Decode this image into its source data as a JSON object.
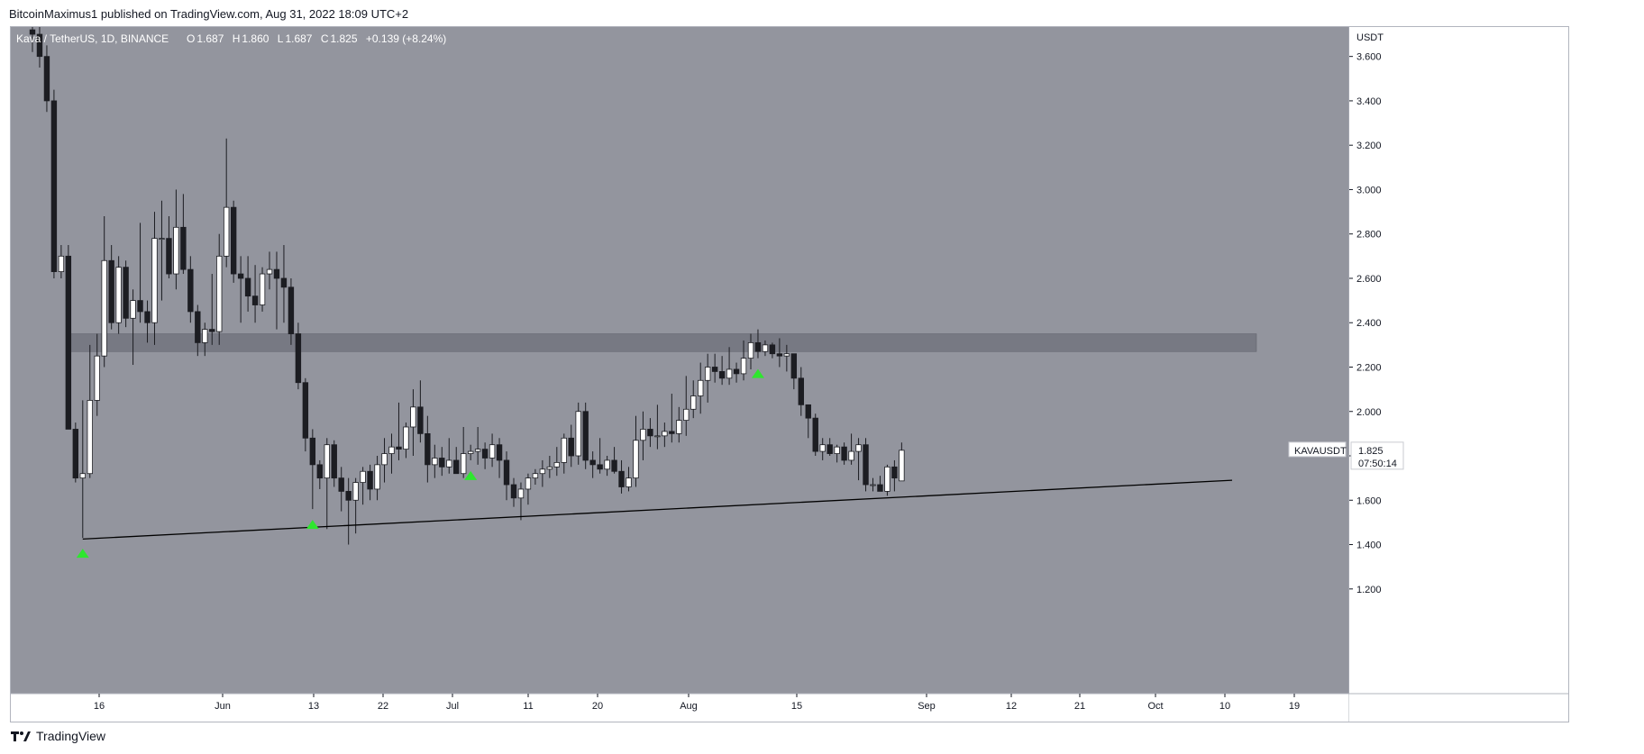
{
  "header": {
    "published_text": "BitcoinMaximus1 published on TradingView.com, Aug 31, 2022 18:09 UTC+2"
  },
  "legend": {
    "symbol": "Kava / TetherUS, 1D, BINANCE",
    "o_label": "O",
    "o_value": "1.687",
    "h_label": "H",
    "h_value": "1.860",
    "l_label": "L",
    "l_value": "1.687",
    "c_label": "C",
    "c_value": "1.825",
    "change": "+0.139 (+8.24%)"
  },
  "price_axis": {
    "unit": "USDT",
    "ticks": [
      "3.600",
      "3.400",
      "3.200",
      "3.000",
      "2.800",
      "2.600",
      "2.400",
      "2.200",
      "2.000",
      "1.800",
      "1.600",
      "1.400",
      "1.200"
    ]
  },
  "time_axis": {
    "ticks": [
      "16",
      "Jun",
      "13",
      "22",
      "Jul",
      "11",
      "20",
      "Aug",
      "15",
      "Sep",
      "12",
      "21",
      "Oct",
      "10",
      "19"
    ]
  },
  "price_tag": {
    "symbol": "KAVAUSDT",
    "price": "1.825",
    "countdown": "07:50:14"
  },
  "footer": {
    "brand": "TradingView"
  },
  "colors": {
    "plot_bg": "#93959e",
    "up_candle": "#ffffff",
    "down_candle": "#1c1d22",
    "zone": "#6e7079",
    "trendline": "#000000",
    "marker": "#2ee62e",
    "axis_bg": "#ffffff"
  },
  "chart_data": {
    "type": "candlestick",
    "title": "Kava / TetherUS, 1D, BINANCE",
    "ylabel": "USDT",
    "ylim": [
      1.2,
      3.8
    ],
    "resistance_zone": [
      2.27,
      2.35
    ],
    "support_line": {
      "start": {
        "candle_index": 7,
        "price": 1.425
      },
      "end": {
        "candle_index": 137,
        "price": 1.69
      }
    },
    "marker_candle_indices": [
      7,
      39,
      61,
      101
    ],
    "ohlc": [
      [
        3.72,
        3.78,
        3.62,
        3.7
      ],
      [
        3.7,
        3.75,
        3.55,
        3.6
      ],
      [
        3.6,
        3.65,
        3.35,
        3.4
      ],
      [
        3.4,
        3.45,
        2.6,
        2.63
      ],
      [
        2.63,
        2.75,
        2.6,
        2.7
      ],
      [
        2.7,
        2.75,
        1.93,
        1.92
      ],
      [
        1.92,
        1.95,
        1.68,
        1.7
      ],
      [
        1.7,
        2.05,
        1.43,
        1.72
      ],
      [
        1.72,
        2.3,
        1.7,
        2.05
      ],
      [
        2.05,
        2.35,
        1.98,
        2.25
      ],
      [
        2.25,
        2.88,
        2.2,
        2.68
      ],
      [
        2.68,
        2.75,
        2.37,
        2.4
      ],
      [
        2.4,
        2.7,
        2.35,
        2.65
      ],
      [
        2.65,
        2.68,
        2.38,
        2.42
      ],
      [
        2.42,
        2.55,
        2.21,
        2.5
      ],
      [
        2.5,
        2.85,
        2.4,
        2.45
      ],
      [
        2.45,
        2.5,
        2.31,
        2.4
      ],
      [
        2.4,
        2.9,
        2.3,
        2.78
      ],
      [
        2.78,
        2.95,
        2.5,
        2.78
      ],
      [
        2.78,
        2.88,
        2.6,
        2.62
      ],
      [
        2.62,
        3.0,
        2.55,
        2.83
      ],
      [
        2.83,
        2.98,
        2.62,
        2.64
      ],
      [
        2.64,
        2.7,
        2.4,
        2.45
      ],
      [
        2.45,
        2.48,
        2.25,
        2.31
      ],
      [
        2.31,
        2.4,
        2.25,
        2.37
      ],
      [
        2.37,
        2.62,
        2.3,
        2.36
      ],
      [
        2.36,
        2.8,
        2.3,
        2.7
      ],
      [
        2.7,
        3.23,
        2.65,
        2.92
      ],
      [
        2.92,
        2.95,
        2.58,
        2.62
      ],
      [
        2.62,
        2.7,
        2.4,
        2.6
      ],
      [
        2.6,
        2.7,
        2.45,
        2.52
      ],
      [
        2.52,
        2.66,
        2.4,
        2.48
      ],
      [
        2.48,
        2.65,
        2.45,
        2.62
      ],
      [
        2.62,
        2.72,
        2.55,
        2.64
      ],
      [
        2.64,
        2.72,
        2.37,
        2.6
      ],
      [
        2.6,
        2.75,
        2.4,
        2.56
      ],
      [
        2.56,
        2.6,
        2.3,
        2.35
      ],
      [
        2.35,
        2.4,
        2.1,
        2.13
      ],
      [
        2.13,
        2.15,
        1.82,
        1.88
      ],
      [
        1.88,
        1.92,
        1.56,
        1.76
      ],
      [
        1.76,
        1.78,
        1.65,
        1.7
      ],
      [
        1.7,
        1.88,
        1.47,
        1.85
      ],
      [
        1.85,
        1.87,
        1.66,
        1.7
      ],
      [
        1.7,
        1.75,
        1.55,
        1.64
      ],
      [
        1.64,
        1.7,
        1.4,
        1.6
      ],
      [
        1.6,
        1.7,
        1.45,
        1.68
      ],
      [
        1.68,
        1.75,
        1.58,
        1.73
      ],
      [
        1.73,
        1.76,
        1.6,
        1.65
      ],
      [
        1.65,
        1.8,
        1.6,
        1.76
      ],
      [
        1.76,
        1.88,
        1.68,
        1.81
      ],
      [
        1.81,
        1.9,
        1.72,
        1.84
      ],
      [
        1.84,
        2.04,
        1.78,
        1.83
      ],
      [
        1.83,
        1.95,
        1.79,
        1.93
      ],
      [
        1.93,
        2.1,
        1.8,
        2.02
      ],
      [
        2.02,
        2.14,
        1.86,
        1.9
      ],
      [
        1.9,
        1.98,
        1.68,
        1.76
      ],
      [
        1.76,
        1.85,
        1.7,
        1.79
      ],
      [
        1.79,
        1.84,
        1.71,
        1.75
      ],
      [
        1.75,
        1.88,
        1.72,
        1.78
      ],
      [
        1.78,
        1.84,
        1.73,
        1.72
      ],
      [
        1.72,
        1.93,
        1.7,
        1.81
      ],
      [
        1.81,
        1.85,
        1.78,
        1.82
      ],
      [
        1.82,
        1.93,
        1.76,
        1.83
      ],
      [
        1.83,
        1.86,
        1.74,
        1.79
      ],
      [
        1.79,
        1.9,
        1.75,
        1.85
      ],
      [
        1.85,
        1.88,
        1.7,
        1.78
      ],
      [
        1.78,
        1.82,
        1.6,
        1.67
      ],
      [
        1.67,
        1.7,
        1.57,
        1.61
      ],
      [
        1.61,
        1.68,
        1.51,
        1.65
      ],
      [
        1.65,
        1.72,
        1.58,
        1.7
      ],
      [
        1.7,
        1.74,
        1.67,
        1.72
      ],
      [
        1.72,
        1.78,
        1.66,
        1.74
      ],
      [
        1.74,
        1.8,
        1.7,
        1.75
      ],
      [
        1.75,
        1.84,
        1.71,
        1.77
      ],
      [
        1.77,
        1.9,
        1.72,
        1.88
      ],
      [
        1.88,
        1.94,
        1.75,
        1.8
      ],
      [
        1.8,
        2.04,
        1.76,
        2.0
      ],
      [
        2.0,
        2.04,
        1.74,
        1.78
      ],
      [
        1.78,
        1.82,
        1.7,
        1.76
      ],
      [
        1.76,
        1.88,
        1.72,
        1.74
      ],
      [
        1.74,
        1.8,
        1.71,
        1.78
      ],
      [
        1.78,
        1.84,
        1.72,
        1.73
      ],
      [
        1.73,
        1.78,
        1.63,
        1.66
      ],
      [
        1.66,
        1.75,
        1.64,
        1.7
      ],
      [
        1.7,
        1.98,
        1.66,
        1.87
      ],
      [
        1.87,
        2.0,
        1.78,
        1.92
      ],
      [
        1.92,
        1.97,
        1.84,
        1.89
      ],
      [
        1.89,
        2.03,
        1.83,
        1.89
      ],
      [
        1.89,
        1.95,
        1.84,
        1.91
      ],
      [
        1.91,
        2.08,
        1.86,
        1.9
      ],
      [
        1.9,
        2.02,
        1.86,
        1.96
      ],
      [
        1.96,
        2.16,
        1.89,
        2.01
      ],
      [
        2.01,
        2.14,
        1.97,
        2.07
      ],
      [
        2.07,
        2.22,
        1.99,
        2.14
      ],
      [
        2.14,
        2.26,
        2.04,
        2.2
      ],
      [
        2.2,
        2.26,
        2.13,
        2.18
      ],
      [
        2.18,
        2.25,
        2.12,
        2.15
      ],
      [
        2.15,
        2.29,
        2.12,
        2.19
      ],
      [
        2.19,
        2.22,
        2.13,
        2.17
      ],
      [
        2.17,
        2.32,
        2.14,
        2.24
      ],
      [
        2.24,
        2.35,
        2.19,
        2.31
      ],
      [
        2.31,
        2.37,
        2.24,
        2.27
      ],
      [
        2.27,
        2.32,
        2.25,
        2.3
      ],
      [
        2.3,
        2.31,
        2.24,
        2.26
      ],
      [
        2.26,
        2.33,
        2.2,
        2.25
      ],
      [
        2.25,
        2.3,
        2.18,
        2.26
      ],
      [
        2.26,
        2.26,
        2.1,
        2.15
      ],
      [
        2.15,
        2.2,
        1.98,
        2.03
      ],
      [
        2.03,
        2.03,
        1.88,
        1.97
      ],
      [
        1.97,
        1.99,
        1.8,
        1.82
      ],
      [
        1.82,
        1.88,
        1.78,
        1.85
      ],
      [
        1.85,
        1.88,
        1.8,
        1.81
      ],
      [
        1.81,
        1.85,
        1.77,
        1.84
      ],
      [
        1.84,
        1.86,
        1.76,
        1.78
      ],
      [
        1.78,
        1.9,
        1.76,
        1.82
      ],
      [
        1.82,
        1.88,
        1.69,
        1.85
      ],
      [
        1.85,
        1.88,
        1.64,
        1.67
      ],
      [
        1.67,
        1.7,
        1.64,
        1.67
      ],
      [
        1.67,
        1.71,
        1.65,
        1.64
      ],
      [
        1.64,
        1.76,
        1.62,
        1.75
      ],
      [
        1.75,
        1.78,
        1.64,
        1.7
      ],
      [
        1.687,
        1.86,
        1.687,
        1.825
      ]
    ]
  }
}
